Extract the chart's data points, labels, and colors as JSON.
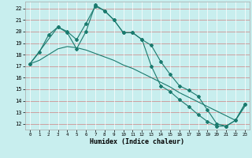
{
  "xlabel": "Humidex (Indice chaleur)",
  "bg_color": "#c8eeee",
  "line_color": "#1a7a6e",
  "xlim": [
    -0.5,
    23.5
  ],
  "ylim": [
    11.5,
    22.6
  ],
  "yticks": [
    12,
    13,
    14,
    15,
    16,
    17,
    18,
    19,
    20,
    21,
    22
  ],
  "xticks": [
    0,
    1,
    2,
    3,
    4,
    5,
    6,
    7,
    8,
    9,
    10,
    11,
    12,
    13,
    14,
    15,
    16,
    17,
    18,
    19,
    20,
    21,
    22,
    23
  ],
  "line1_x": [
    0,
    1,
    2,
    3,
    4,
    5,
    6,
    7,
    8,
    9,
    10,
    11,
    12,
    13,
    14,
    15,
    16,
    17,
    18,
    19,
    20,
    21,
    22,
    23
  ],
  "line1_y": [
    17.2,
    18.2,
    19.7,
    20.4,
    20.0,
    19.3,
    20.7,
    22.2,
    21.8,
    21.0,
    19.9,
    19.9,
    19.3,
    18.8,
    17.4,
    16.3,
    15.3,
    14.9,
    14.4,
    13.2,
    12.0,
    11.8,
    12.3,
    13.7
  ],
  "line2_x": [
    0,
    1,
    2,
    3,
    4,
    5,
    6,
    7,
    8,
    9,
    10,
    11,
    12,
    13,
    14,
    15,
    16,
    17,
    18,
    19,
    20,
    21,
    22,
    23
  ],
  "line2_y": [
    17.2,
    17.5,
    18.0,
    18.5,
    18.7,
    18.6,
    18.4,
    18.1,
    17.8,
    17.5,
    17.1,
    16.8,
    16.4,
    16.0,
    15.6,
    15.2,
    14.7,
    14.3,
    13.9,
    13.5,
    13.1,
    12.7,
    12.3,
    13.5
  ],
  "line3_x": [
    0,
    3,
    4,
    5,
    6,
    7,
    8,
    9,
    10,
    11,
    12,
    13,
    14,
    15,
    16,
    17,
    18,
    19,
    20,
    21,
    22,
    23
  ],
  "line3_y": [
    17.2,
    20.4,
    19.9,
    18.5,
    20.0,
    22.3,
    21.8,
    21.0,
    19.9,
    19.9,
    19.3,
    17.0,
    15.3,
    14.8,
    14.1,
    13.5,
    12.8,
    12.2,
    11.8,
    11.8,
    12.3,
    13.7
  ]
}
